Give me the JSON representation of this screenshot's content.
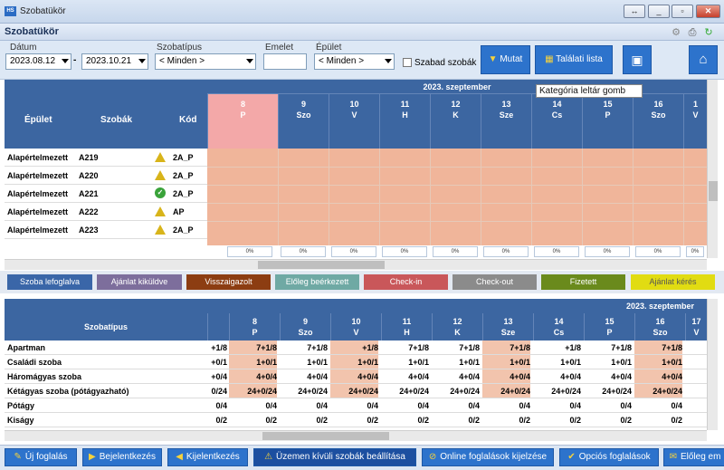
{
  "window": {
    "title": "Szobatükör"
  },
  "header": {
    "title": "Szobatükör"
  },
  "filters": {
    "date_label": "Dátum",
    "date_from": "2023.08.12",
    "date_sep": "-",
    "date_to": "2023.10.21",
    "room_type_label": "Szobatípus",
    "room_type_value": "< Minden >",
    "floor_label": "Emelet",
    "floor_value": "",
    "building_label": "Épület",
    "building_value": "< Minden >",
    "free_rooms_label": "Szabad szobák"
  },
  "toolbar": {
    "show_label": "Mutat",
    "results_label": "Találati lista",
    "tooltip": "Kategória leltár gomb"
  },
  "grid1": {
    "month": "2023. szeptember",
    "col_building": "Épület",
    "col_room": "Szobák",
    "col_code": "Kód",
    "days": [
      {
        "num": "8",
        "dow": "P"
      },
      {
        "num": "9",
        "dow": "Szo"
      },
      {
        "num": "10",
        "dow": "V"
      },
      {
        "num": "11",
        "dow": "H"
      },
      {
        "num": "12",
        "dow": "K"
      },
      {
        "num": "13",
        "dow": "Sze"
      },
      {
        "num": "14",
        "dow": "Cs"
      },
      {
        "num": "15",
        "dow": "P"
      },
      {
        "num": "16",
        "dow": "Szo"
      },
      {
        "num": "1",
        "dow": "V"
      }
    ],
    "rows": [
      {
        "building": "Alapértelmezett",
        "room": "A219",
        "status": "warning",
        "code": "2A_P"
      },
      {
        "building": "Alapértelmezett",
        "room": "A220",
        "status": "warning",
        "code": "2A_P"
      },
      {
        "building": "Alapértelmezett",
        "room": "A221",
        "status": "ok",
        "code": "2A_P"
      },
      {
        "building": "Alapértelmezett",
        "room": "A222",
        "status": "warning",
        "code": "AP"
      },
      {
        "building": "Alapértelmezett",
        "room": "A223",
        "status": "warning",
        "code": "2A_P"
      }
    ],
    "pct": "0%"
  },
  "legend": [
    {
      "label": "Szoba lefoglalva",
      "color": "#3a66a8"
    },
    {
      "label": "Ajánlat kiküldve",
      "color": "#7d6e9c"
    },
    {
      "label": "Visszaigazolt",
      "color": "#8c3d12"
    },
    {
      "label": "Előleg beérkezett",
      "color": "#6fa9a4"
    },
    {
      "label": "Check-in",
      "color": "#c9575a"
    },
    {
      "label": "Check-out",
      "color": "#8b8b8b"
    },
    {
      "label": "Fizetett",
      "color": "#6a8a1c"
    },
    {
      "label": "Ajánlat kérés",
      "color": "#e1dc12"
    }
  ],
  "grid2": {
    "month": "2023. szeptember",
    "col_type": "Szobatípus",
    "days": [
      {
        "num": "8",
        "dow": "P"
      },
      {
        "num": "9",
        "dow": "Szo"
      },
      {
        "num": "10",
        "dow": "V"
      },
      {
        "num": "11",
        "dow": "H"
      },
      {
        "num": "12",
        "dow": "K"
      },
      {
        "num": "13",
        "dow": "Sze"
      },
      {
        "num": "14",
        "dow": "Cs"
      },
      {
        "num": "15",
        "dow": "P"
      },
      {
        "num": "16",
        "dow": "Szo"
      },
      {
        "num": "17",
        "dow": "V"
      }
    ],
    "rows": [
      {
        "name": "Apartman",
        "first": "+1/8",
        "cells": [
          "7+1/8",
          "7+1/8",
          "+1/8",
          "7+1/8",
          "7+1/8",
          "7+1/8",
          "+1/8",
          "7+1/8",
          "7+1/8"
        ]
      },
      {
        "name": "Családi szoba",
        "first": "+0/1",
        "cells": [
          "1+0/1",
          "1+0/1",
          "1+0/1",
          "1+0/1",
          "1+0/1",
          "1+0/1",
          "1+0/1",
          "1+0/1",
          "1+0/1"
        ]
      },
      {
        "name": "Háromágyas szoba",
        "first": "+0/4",
        "cells": [
          "4+0/4",
          "4+0/4",
          "4+0/4",
          "4+0/4",
          "4+0/4",
          "4+0/4",
          "4+0/4",
          "4+0/4",
          "4+0/4"
        ]
      },
      {
        "name": "Kétágyas szoba (pótágyazható)",
        "first": "0/24",
        "cells": [
          "24+0/24",
          "24+0/24",
          "24+0/24",
          "24+0/24",
          "24+0/24",
          "24+0/24",
          "24+0/24",
          "24+0/24",
          "24+0/24"
        ]
      },
      {
        "name": "Pótágy",
        "first": "0/4",
        "cells": [
          "0/4",
          "0/4",
          "0/4",
          "0/4",
          "0/4",
          "0/4",
          "0/4",
          "0/4",
          "0/4"
        ]
      },
      {
        "name": "Kiságy",
        "first": "0/2",
        "cells": [
          "0/2",
          "0/2",
          "0/2",
          "0/2",
          "0/2",
          "0/2",
          "0/2",
          "0/2",
          "0/2"
        ]
      }
    ]
  },
  "bottom": [
    {
      "label": "Új foglalás"
    },
    {
      "label": "Bejelentkezés"
    },
    {
      "label": "Kijelentkezés"
    },
    {
      "label": "Üzemen kívüli szobák beállítása"
    },
    {
      "label": "Online foglalások kijelzése"
    },
    {
      "label": "Opciós foglalások"
    },
    {
      "label": "Előleg em"
    }
  ]
}
